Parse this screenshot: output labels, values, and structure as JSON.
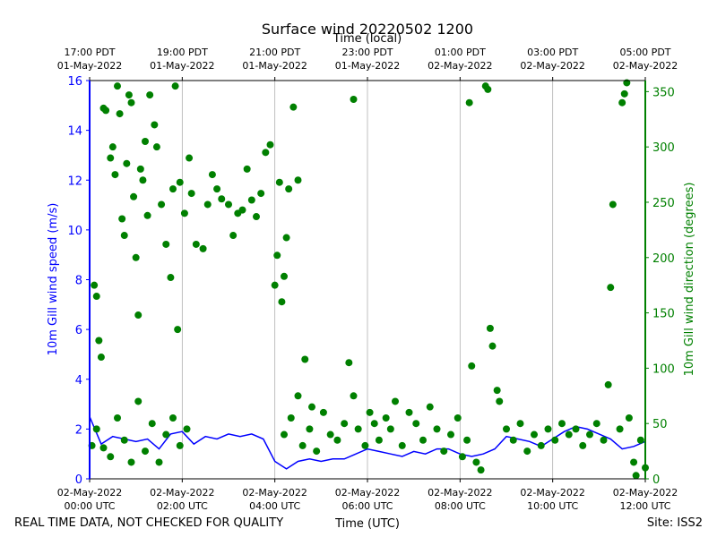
{
  "chart_data": {
    "type": "line+scatter",
    "title": "Surface wind 20220502 1200",
    "top_axis_label": "Time (local)",
    "xlabel": "Time (UTC)",
    "ylabel_left": "10m Gill wind speed (m/s)",
    "ylabel_right": "10m Gill wind direction (degrees)",
    "footer_left": "REAL TIME DATA, NOT CHECKED FOR QUALITY",
    "footer_right": "Site: ISS2",
    "x_range_hours_utc": [
      0,
      12
    ],
    "ylim_left": [
      0,
      16
    ],
    "ylim_right": [
      0,
      360
    ],
    "grid": "vertical",
    "colors": {
      "speed": "#0000ff",
      "direction": "#008000",
      "grid": "#b0b0b0"
    },
    "bottom_ticks": [
      {
        "hour": 0,
        "line1": "02-May-2022",
        "line2": "00:00 UTC"
      },
      {
        "hour": 2,
        "line1": "02-May-2022",
        "line2": "02:00 UTC"
      },
      {
        "hour": 4,
        "line1": "02-May-2022",
        "line2": "04:00 UTC"
      },
      {
        "hour": 6,
        "line1": "02-May-2022",
        "line2": "06:00 UTC"
      },
      {
        "hour": 8,
        "line1": "02-May-2022",
        "line2": "08:00 UTC"
      },
      {
        "hour": 10,
        "line1": "02-May-2022",
        "line2": "10:00 UTC"
      },
      {
        "hour": 12,
        "line1": "02-May-2022",
        "line2": "12:00 UTC"
      }
    ],
    "top_ticks": [
      {
        "hour": 0,
        "line1": "17:00 PDT",
        "line2": "01-May-2022"
      },
      {
        "hour": 2,
        "line1": "19:00 PDT",
        "line2": "01-May-2022"
      },
      {
        "hour": 4,
        "line1": "21:00 PDT",
        "line2": "01-May-2022"
      },
      {
        "hour": 6,
        "line1": "23:00 PDT",
        "line2": "01-May-2022"
      },
      {
        "hour": 8,
        "line1": "01:00 PDT",
        "line2": "02-May-2022"
      },
      {
        "hour": 10,
        "line1": "03:00 PDT",
        "line2": "02-May-2022"
      },
      {
        "hour": 12,
        "line1": "05:00 PDT",
        "line2": "02-May-2022"
      }
    ],
    "left_ticks": [
      0,
      2,
      4,
      6,
      8,
      10,
      12,
      14,
      16
    ],
    "right_ticks": [
      0,
      50,
      100,
      150,
      200,
      250,
      300,
      350
    ],
    "series": [
      {
        "name": "10m Gill wind speed",
        "style": "line",
        "axis": "left",
        "x_hours": [
          0,
          0.25,
          0.5,
          0.75,
          1,
          1.25,
          1.5,
          1.75,
          2,
          2.25,
          2.5,
          2.75,
          3,
          3.25,
          3.5,
          3.75,
          4,
          4.25,
          4.5,
          4.75,
          5,
          5.25,
          5.5,
          5.75,
          6,
          6.25,
          6.5,
          6.75,
          7,
          7.25,
          7.5,
          7.75,
          8,
          8.25,
          8.5,
          8.75,
          9,
          9.25,
          9.5,
          9.75,
          10,
          10.25,
          10.5,
          10.75,
          11,
          11.25,
          11.5,
          11.75,
          12
        ],
        "values": [
          2.5,
          1.4,
          1.7,
          1.6,
          1.5,
          1.6,
          1.2,
          1.8,
          1.9,
          1.4,
          1.7,
          1.6,
          1.8,
          1.7,
          1.8,
          1.6,
          0.7,
          0.4,
          0.7,
          0.8,
          0.7,
          0.8,
          0.8,
          1.0,
          1.2,
          1.1,
          1.0,
          0.9,
          1.1,
          1.0,
          1.2,
          1.2,
          1.0,
          0.9,
          1.0,
          1.2,
          1.7,
          1.6,
          1.5,
          1.3,
          1.6,
          1.9,
          2.1,
          2.0,
          1.8,
          1.6,
          1.2,
          1.3,
          1.5
        ]
      },
      {
        "name": "10m Gill wind direction",
        "style": "scatter",
        "axis": "right",
        "points": [
          [
            0.1,
            175
          ],
          [
            0.15,
            165
          ],
          [
            0.2,
            125
          ],
          [
            0.25,
            110
          ],
          [
            0.3,
            335
          ],
          [
            0.35,
            333
          ],
          [
            0.45,
            290
          ],
          [
            0.5,
            300
          ],
          [
            0.55,
            275
          ],
          [
            0.6,
            355
          ],
          [
            0.65,
            330
          ],
          [
            0.7,
            235
          ],
          [
            0.75,
            220
          ],
          [
            0.8,
            285
          ],
          [
            0.85,
            347
          ],
          [
            0.9,
            340
          ],
          [
            0.95,
            255
          ],
          [
            1.0,
            200
          ],
          [
            1.05,
            148
          ],
          [
            1.1,
            280
          ],
          [
            1.15,
            270
          ],
          [
            1.2,
            305
          ],
          [
            1.25,
            238
          ],
          [
            1.3,
            347
          ],
          [
            1.4,
            320
          ],
          [
            1.45,
            300
          ],
          [
            1.55,
            248
          ],
          [
            1.65,
            212
          ],
          [
            1.75,
            182
          ],
          [
            1.8,
            262
          ],
          [
            1.85,
            355
          ],
          [
            1.9,
            135
          ],
          [
            1.95,
            268
          ],
          [
            2.05,
            240
          ],
          [
            2.15,
            290
          ],
          [
            2.2,
            258
          ],
          [
            2.3,
            212
          ],
          [
            2.45,
            208
          ],
          [
            2.55,
            248
          ],
          [
            2.65,
            275
          ],
          [
            2.75,
            262
          ],
          [
            2.85,
            253
          ],
          [
            3.0,
            248
          ],
          [
            3.1,
            220
          ],
          [
            3.2,
            240
          ],
          [
            3.3,
            243
          ],
          [
            3.4,
            280
          ],
          [
            3.5,
            252
          ],
          [
            3.6,
            237
          ],
          [
            3.7,
            258
          ],
          [
            3.8,
            295
          ],
          [
            3.9,
            302
          ],
          [
            4.0,
            175
          ],
          [
            4.05,
            202
          ],
          [
            4.1,
            268
          ],
          [
            4.15,
            160
          ],
          [
            4.2,
            183
          ],
          [
            4.25,
            218
          ],
          [
            4.3,
            262
          ],
          [
            4.4,
            336
          ],
          [
            4.5,
            270
          ],
          [
            4.65,
            108
          ],
          [
            4.8,
            65
          ],
          [
            0.05,
            30
          ],
          [
            0.15,
            45
          ],
          [
            0.3,
            28
          ],
          [
            0.45,
            20
          ],
          [
            0.6,
            55
          ],
          [
            0.75,
            35
          ],
          [
            0.9,
            15
          ],
          [
            1.05,
            70
          ],
          [
            1.2,
            25
          ],
          [
            1.35,
            50
          ],
          [
            1.5,
            15
          ],
          [
            1.65,
            40
          ],
          [
            1.8,
            55
          ],
          [
            1.95,
            30
          ],
          [
            2.1,
            45
          ],
          [
            4.2,
            40
          ],
          [
            4.35,
            55
          ],
          [
            4.5,
            75
          ],
          [
            4.6,
            30
          ],
          [
            4.75,
            45
          ],
          [
            4.9,
            25
          ],
          [
            5.05,
            60
          ],
          [
            5.2,
            40
          ],
          [
            5.35,
            35
          ],
          [
            5.5,
            50
          ],
          [
            5.6,
            105
          ],
          [
            5.7,
            75
          ],
          [
            5.8,
            45
          ],
          [
            5.95,
            30
          ],
          [
            6.05,
            60
          ],
          [
            6.15,
            50
          ],
          [
            6.25,
            35
          ],
          [
            6.4,
            55
          ],
          [
            6.5,
            45
          ],
          [
            6.6,
            70
          ],
          [
            6.75,
            30
          ],
          [
            6.9,
            60
          ],
          [
            7.05,
            50
          ],
          [
            7.2,
            35
          ],
          [
            7.35,
            65
          ],
          [
            7.5,
            45
          ],
          [
            7.65,
            25
          ],
          [
            7.8,
            40
          ],
          [
            7.95,
            55
          ],
          [
            5.7,
            343
          ],
          [
            8.05,
            20
          ],
          [
            8.15,
            35
          ],
          [
            8.2,
            340
          ],
          [
            8.25,
            102
          ],
          [
            8.35,
            15
          ],
          [
            8.45,
            8
          ],
          [
            8.55,
            355
          ],
          [
            8.6,
            352
          ],
          [
            8.65,
            136
          ],
          [
            8.7,
            120
          ],
          [
            8.8,
            80
          ],
          [
            8.85,
            70
          ],
          [
            9.0,
            45
          ],
          [
            9.15,
            35
          ],
          [
            9.3,
            50
          ],
          [
            9.45,
            25
          ],
          [
            9.6,
            40
          ],
          [
            9.75,
            30
          ],
          [
            9.9,
            45
          ],
          [
            10.05,
            35
          ],
          [
            10.2,
            50
          ],
          [
            10.35,
            40
          ],
          [
            10.5,
            45
          ],
          [
            10.65,
            30
          ],
          [
            10.8,
            40
          ],
          [
            10.95,
            50
          ],
          [
            11.1,
            35
          ],
          [
            11.2,
            85
          ],
          [
            11.25,
            173
          ],
          [
            11.3,
            248
          ],
          [
            11.45,
            45
          ],
          [
            11.5,
            340
          ],
          [
            11.55,
            348
          ],
          [
            11.6,
            358
          ],
          [
            11.65,
            55
          ],
          [
            11.75,
            15
          ],
          [
            11.8,
            3
          ],
          [
            11.9,
            35
          ],
          [
            12.0,
            10
          ]
        ]
      }
    ]
  }
}
